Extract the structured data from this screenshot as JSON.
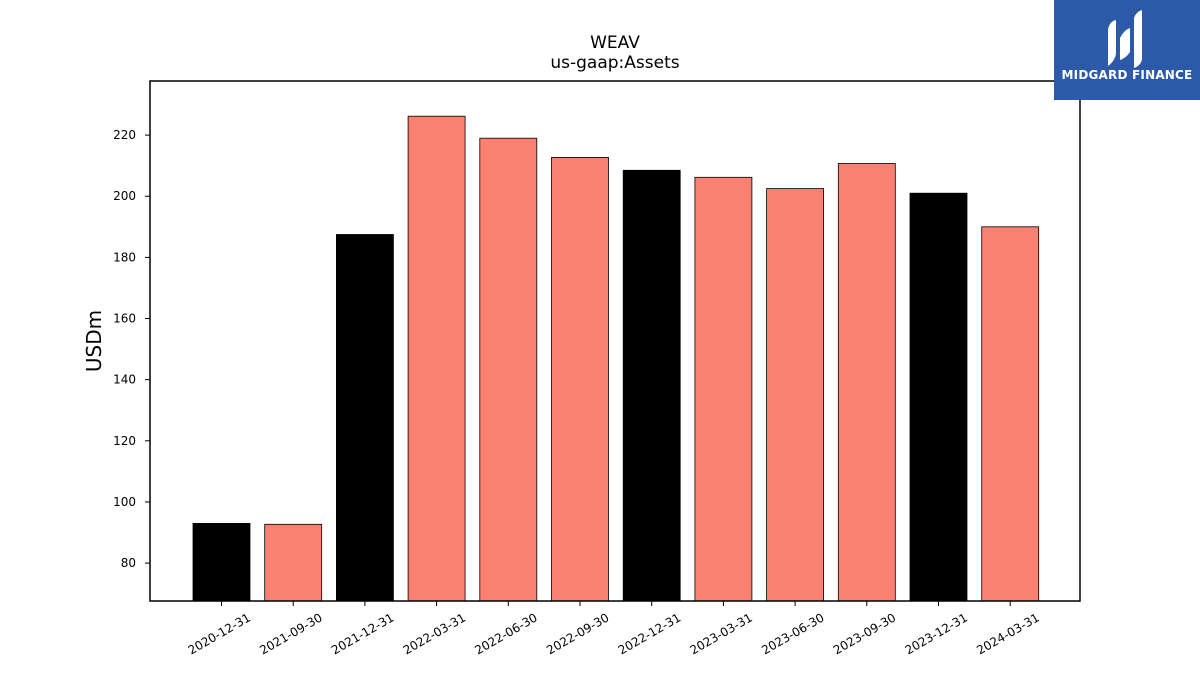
{
  "chart_data": {
    "type": "bar",
    "title": "WEAV",
    "subtitle": "us-gaap:Assets",
    "ylabel": "USDm",
    "xlabel": "",
    "categories": [
      "2020-12-31",
      "2021-09-30",
      "2021-12-31",
      "2022-03-31",
      "2022-06-30",
      "2022-09-30",
      "2022-12-31",
      "2023-03-31",
      "2023-06-30",
      "2023-09-30",
      "2023-12-31",
      "2024-03-31"
    ],
    "values": [
      93.0,
      92.7,
      187.5,
      226.2,
      219.0,
      212.7,
      208.5,
      206.2,
      202.5,
      210.7,
      201.0,
      190.0
    ],
    "bar_colors": [
      "#000000",
      "#fa8072",
      "#000000",
      "#fa8072",
      "#fa8072",
      "#fa8072",
      "#000000",
      "#fa8072",
      "#fa8072",
      "#fa8072",
      "#000000",
      "#fa8072"
    ],
    "yticks": [
      80,
      100,
      120,
      140,
      160,
      180,
      200,
      220
    ],
    "ylim": [
      67.6,
      237.7
    ],
    "grid": false,
    "legend": "none"
  },
  "logo": {
    "text": "MIDGARD FINANCE",
    "background": "#2c5aa8"
  }
}
